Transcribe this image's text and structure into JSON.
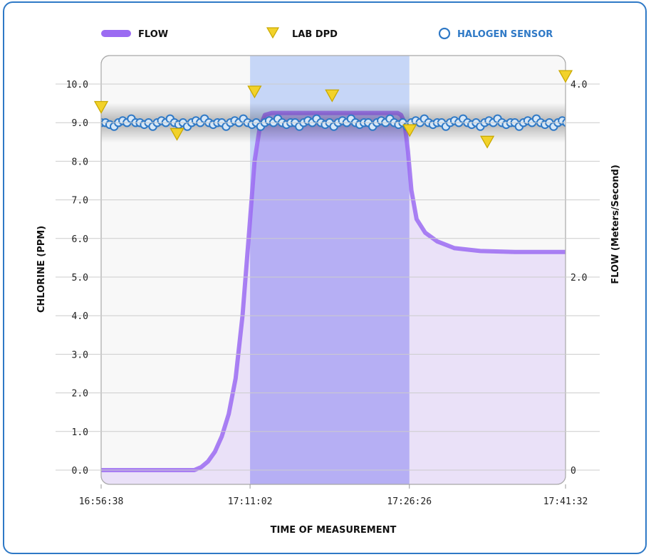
{
  "chart_data": {
    "type": "line",
    "xlabel": "TIME OF MEASUREMENT",
    "ylabel_left": "CHLORINE (PPM)",
    "ylabel_right": "FLOW (Meters/Second)",
    "x_tick_labels": [
      "16:56:38",
      "17:11:02",
      "17:26:26",
      "17:41:32"
    ],
    "x_ticks_seconds": [
      0,
      864,
      1788,
      2694
    ],
    "x_range_seconds": [
      0,
      2694
    ],
    "y_left_ticks": [
      "0.0",
      "1.0",
      "2.0",
      "3.0",
      "4.0",
      "5.0",
      "6.0",
      "7.0",
      "8.0",
      "9.0",
      "10.0"
    ],
    "y_left_range": [
      0,
      10
    ],
    "y_right_ticks": [
      {
        "value": 0,
        "label": "0"
      },
      {
        "value": 2,
        "label": "2.0"
      },
      {
        "value": 4,
        "label": "4.0"
      }
    ],
    "y_right_range": [
      0,
      4
    ],
    "grid": true,
    "highlight_band": {
      "x_start_seconds": 864,
      "x_end_seconds": 1788,
      "color": "#c6d6f7"
    },
    "legend": [
      {
        "name": "FLOW",
        "color": "#9b6bf2",
        "marker": "line"
      },
      {
        "name": "LAB DPD",
        "color": "#e6c81e",
        "marker": "triangle-down"
      },
      {
        "name": "HALOGEN SENSOR",
        "color": "#2f79c6",
        "marker": "circle"
      }
    ],
    "series": [
      {
        "name": "FLOW",
        "axis": "right",
        "color": "#9b6bf2",
        "fill": "#e5d9f8",
        "x": [
          0,
          540,
          580,
          620,
          660,
          700,
          740,
          780,
          820,
          860,
          890,
          920,
          950,
          990,
          1720,
          1740,
          1760,
          1780,
          1800,
          1830,
          1880,
          1950,
          2050,
          2200,
          2400,
          2694
        ],
        "y": [
          0,
          0,
          0.03,
          0.09,
          0.19,
          0.35,
          0.58,
          0.95,
          1.6,
          2.5,
          3.2,
          3.55,
          3.68,
          3.7,
          3.7,
          3.68,
          3.6,
          3.3,
          2.9,
          2.6,
          2.46,
          2.37,
          2.3,
          2.27,
          2.26,
          2.26
        ]
      },
      {
        "name": "LAB DPD",
        "axis": "left",
        "color": "#e6c81e",
        "x": [
          0,
          440,
          890,
          1340,
          1790,
          2240,
          2694
        ],
        "y": [
          9.4,
          8.7,
          9.8,
          9.7,
          8.8,
          8.5,
          10.2
        ]
      },
      {
        "name": "HALOGEN SENSOR",
        "axis": "left",
        "color": "#2f79c6",
        "x_start_seconds": 0,
        "x_step_seconds": 25,
        "y": [
          9.0,
          9.0,
          8.95,
          8.9,
          9.0,
          9.05,
          9.0,
          9.1,
          9.0,
          9.0,
          8.95,
          9.0,
          8.9,
          9.0,
          9.05,
          9.0,
          9.1,
          9.0,
          8.95,
          9.0,
          8.9,
          9.0,
          9.05,
          9.0,
          9.1,
          9.0,
          8.95,
          9.0,
          9.0,
          8.9,
          9.0,
          9.05,
          9.0,
          9.1,
          9.0,
          8.95,
          9.0,
          8.9,
          9.0,
          9.05,
          9.0,
          9.1,
          9.0,
          8.95,
          9.0,
          9.0,
          8.9,
          9.0,
          9.05,
          9.0,
          9.1,
          9.0,
          8.95,
          9.0,
          8.9,
          9.0,
          9.05,
          9.0,
          9.1,
          9.0,
          8.95,
          9.0,
          9.0,
          8.9,
          9.0,
          9.05,
          9.0,
          9.1,
          9.0,
          8.95,
          9.0,
          8.9,
          9.0,
          9.05,
          9.0,
          9.1,
          9.0,
          8.95,
          9.0,
          9.0,
          8.9,
          9.0,
          9.05,
          9.0,
          9.1,
          9.0,
          8.95,
          9.0,
          8.9,
          9.0,
          9.05,
          9.0,
          9.1,
          9.0,
          8.95,
          9.0,
          9.0,
          8.9,
          9.0,
          9.05,
          9.0,
          9.1,
          9.0,
          8.95,
          9.0,
          8.9,
          9.0,
          9.05,
          9.0
        ]
      }
    ]
  }
}
